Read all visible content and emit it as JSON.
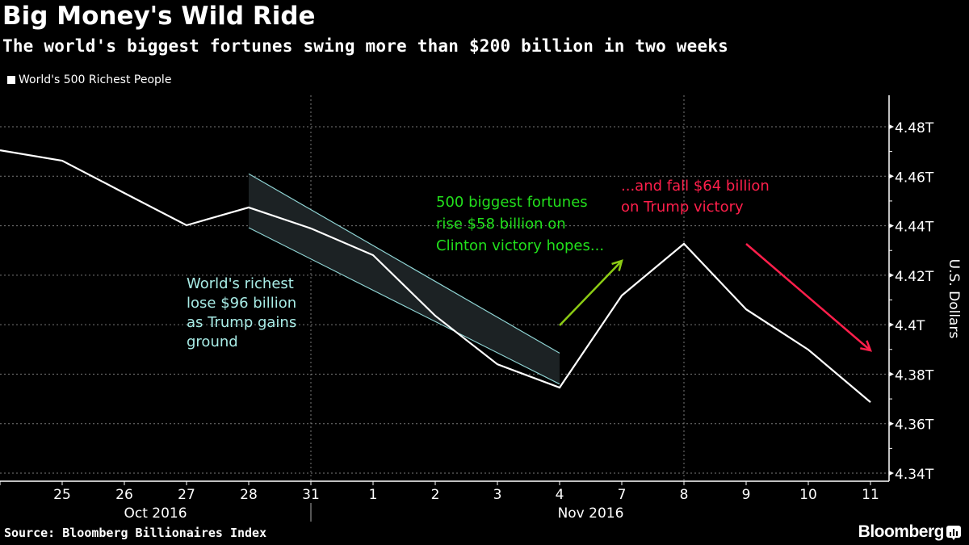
{
  "header": {
    "title": "Big Money's Wild Ride",
    "subtitle": "The world's biggest fortunes swing more than $200 billion in two weeks"
  },
  "footer": {
    "source": "Source: Bloomberg Billionaires Index",
    "brand": "Bloomberg"
  },
  "colors": {
    "background": "#000000",
    "line": "#ffffff",
    "band_fill": "#1c2224",
    "band_edge": "#8fd3d3",
    "annotation_drop": "#a8ece6",
    "annotation_rise": "#22e01c",
    "arrow_rise": "#8ccc14",
    "annotation_fall": "#ff1f4b"
  },
  "chart_data": {
    "type": "line",
    "title": "Big Money's Wild Ride",
    "subtitle": "The world's biggest fortunes swing more than $200 billion in two weeks",
    "xlabel": "",
    "ylabel": "U.S. Dollars",
    "legend": {
      "position": "top-left",
      "entries": [
        "World's 500 Richest People"
      ]
    },
    "x": [
      "Oct 24",
      "Oct 25",
      "Oct 26",
      "Oct 27",
      "Oct 28",
      "Oct 31",
      "Nov 1",
      "Nov 2",
      "Nov 3",
      "Nov 4",
      "Nov 7",
      "Nov 8",
      "Nov 9",
      "Nov 10",
      "Nov 11"
    ],
    "x_tick_labels": [
      "",
      "25",
      "26",
      "27",
      "28",
      "31",
      "1",
      "2",
      "3",
      "4",
      "7",
      "8",
      "9",
      "10",
      "11"
    ],
    "x_group_labels": [
      {
        "label": "Oct 2016",
        "center_between": [
          "26",
          "27"
        ]
      },
      {
        "label": "Nov 2016",
        "center_between": [
          "4",
          "7"
        ]
      }
    ],
    "series": [
      {
        "name": "World's 500 Richest People",
        "unit": "trillion USD",
        "values": [
          4.4705,
          4.4663,
          4.4532,
          4.4402,
          4.4474,
          4.4389,
          4.4281,
          4.4036,
          4.384,
          4.3746,
          4.4118,
          4.4327,
          4.4062,
          4.3899,
          4.3687
        ]
      }
    ],
    "ylim": [
      4.331,
      4.492
    ],
    "y_ticks": [
      4.34,
      4.36,
      4.38,
      4.4,
      4.42,
      4.44,
      4.46,
      4.48
    ],
    "y_tick_labels": [
      "4.34T",
      "4.36T",
      "4.38T",
      "4.4T",
      "4.42T",
      "4.44T",
      "4.46T",
      "4.48T"
    ],
    "y_axis_side": "right",
    "grid": {
      "horizontal": true,
      "vertical_at": [
        "Oct 31",
        "Nov 8"
      ],
      "style": "dotted"
    },
    "band": {
      "description": "Shaded downtrend channel",
      "from": "Oct 28",
      "to": "Nov 4",
      "upper": [
        4.461,
        4.3885
      ],
      "lower": [
        4.4392,
        4.376
      ]
    },
    "annotations": [
      {
        "id": "drop",
        "lines": [
          "World's richest",
          "lose $96 billion",
          "as Trump gains",
          "ground"
        ],
        "color_key": "annotation_drop"
      },
      {
        "id": "rise",
        "lines": [
          "500 biggest fortunes",
          "rise $58 billion on",
          "Clinton victory hopes..."
        ],
        "color_key": "annotation_rise",
        "arrow": "up-right"
      },
      {
        "id": "fall",
        "lines": [
          "...and fall $64 billion",
          "on Trump victory"
        ],
        "color_key": "annotation_fall",
        "arrow": "down-right"
      }
    ]
  }
}
